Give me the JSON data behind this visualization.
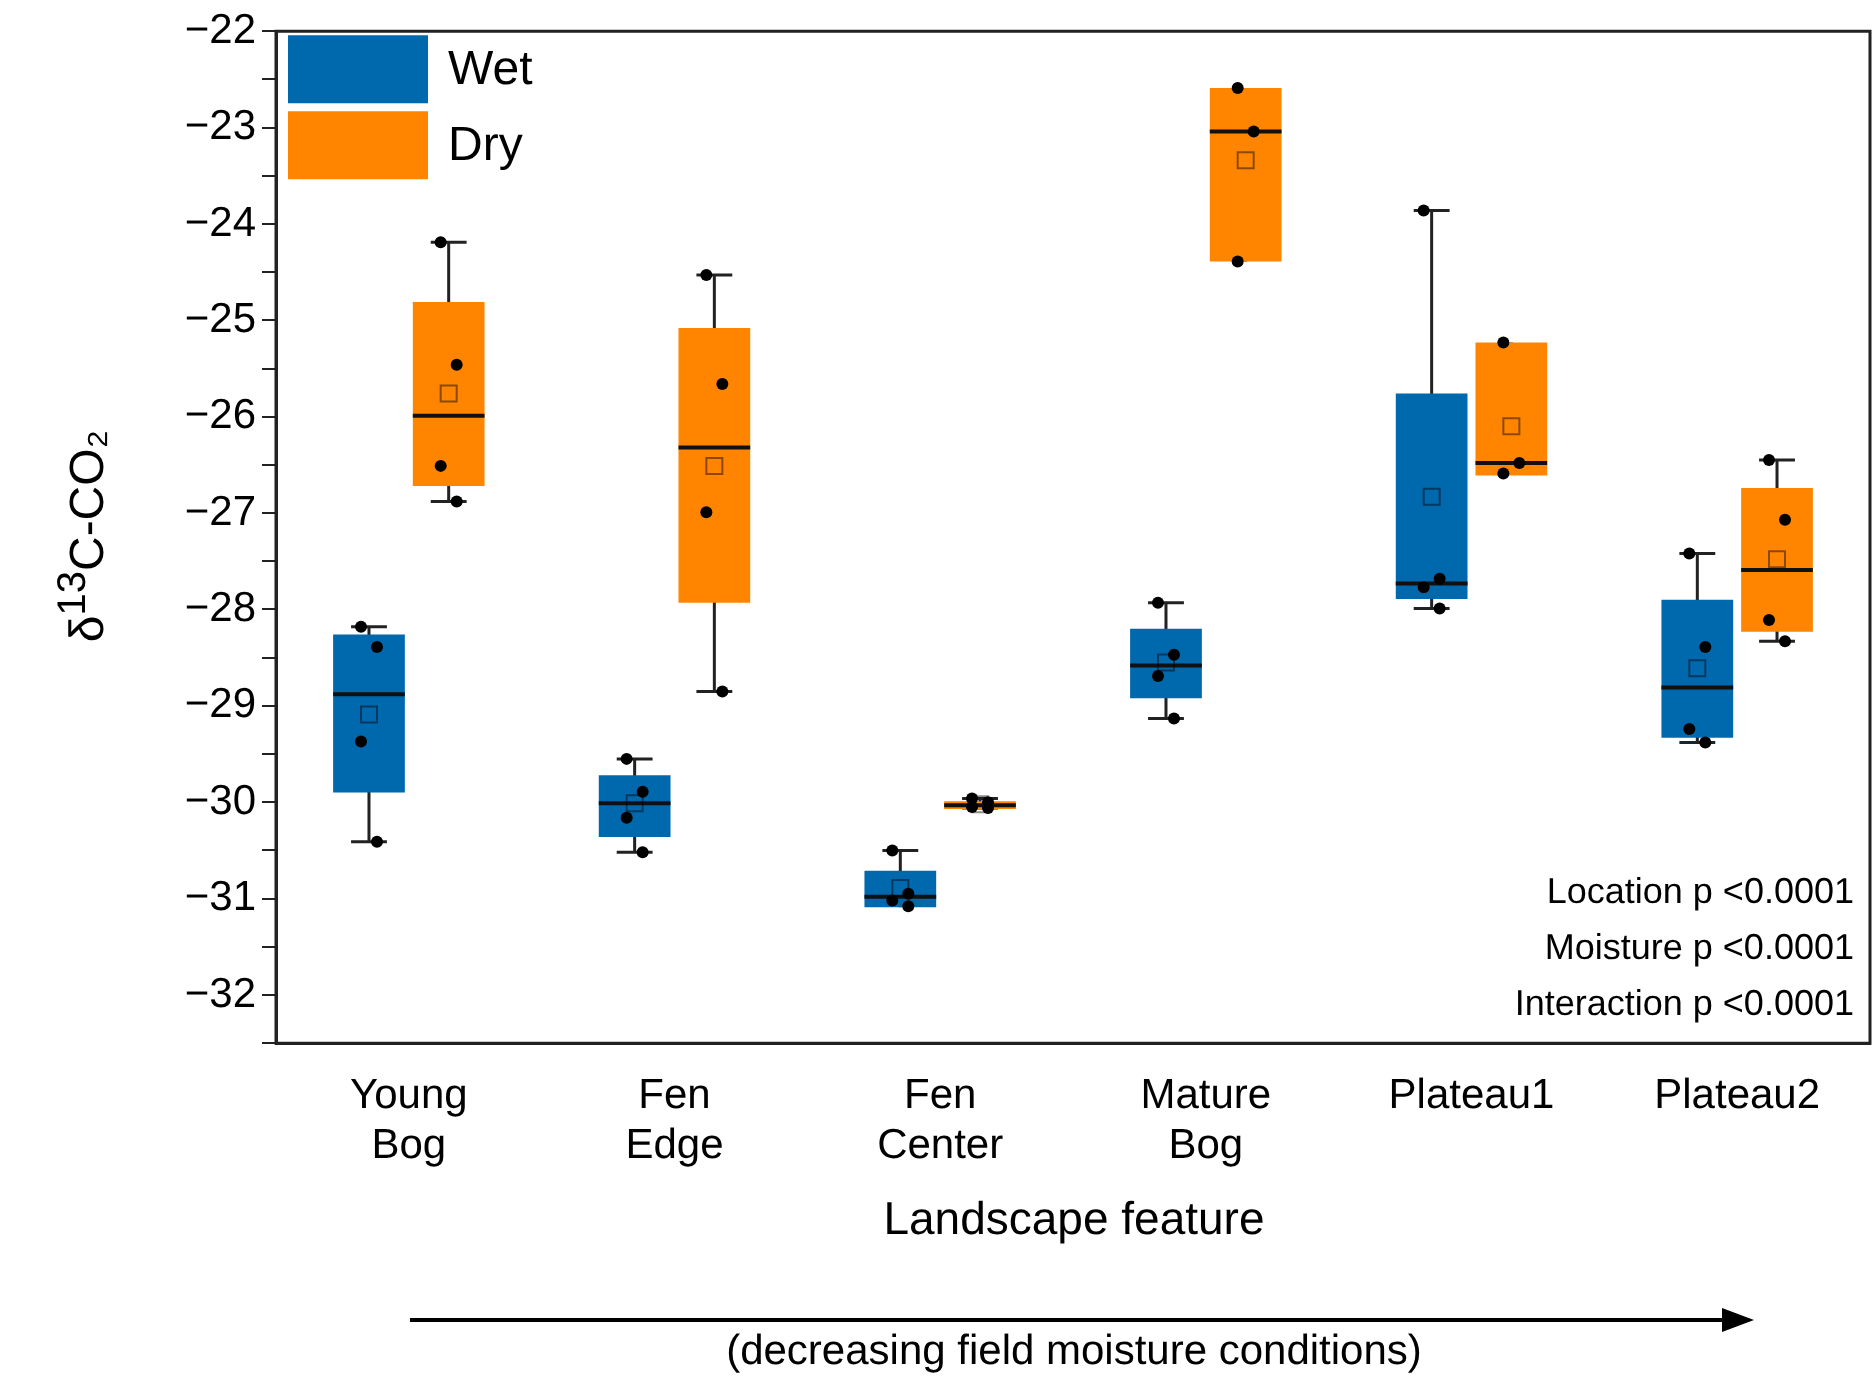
{
  "chart_data": {
    "type": "box",
    "ylabel": "δ$^{13}$C-CO₂",
    "xlabel": "Landscape feature",
    "categories": [
      "Young Bog",
      "Fen Edge",
      "Fen Center",
      "Mature Bog",
      "Plateau1",
      "Plateau2"
    ],
    "ylim": [
      -32.5,
      -22
    ],
    "yticks": [
      {
        "value": -32.5,
        "label": null
      },
      -32,
      {
        "value": -31.5,
        "label": null
      },
      -31,
      {
        "value": -30.5,
        "label": null
      },
      -30,
      {
        "value": -29.5,
        "label": null
      },
      -29,
      {
        "value": -28.5,
        "label": null
      },
      -28,
      {
        "value": -27.5,
        "label": null
      },
      -27,
      {
        "value": -26.5,
        "label": null
      },
      -26,
      {
        "value": -25.5,
        "label": null
      },
      -25,
      {
        "value": -24.5,
        "label": null
      },
      -24,
      {
        "value": -23.5,
        "label": null
      },
      -23,
      {
        "value": -22.5,
        "label": null
      },
      -22
    ],
    "legend": "top left",
    "series": [
      {
        "name": "Wet",
        "color": "#0068ad",
        "boxes": [
          {
            "low": -30.41,
            "q1": -29.9,
            "median": -28.88,
            "q3": -28.26,
            "high": -28.18,
            "mean": -29.09,
            "outliers": [
              -28.18,
              -28.39,
              -29.37,
              -30.41
            ]
          },
          {
            "low": -30.52,
            "q1": -30.36,
            "median": -30.01,
            "q3": -29.72,
            "high": -29.55,
            "mean": -30.01,
            "outliers": [
              -29.55,
              -29.89,
              -30.16,
              -30.52
            ]
          },
          {
            "low": -31.09,
            "q1": -31.09,
            "median": -30.98,
            "q3": -30.71,
            "high": -30.5,
            "mean": -30.89,
            "outliers": [
              -30.5,
              -30.95,
              -31.02,
              -31.08
            ]
          },
          {
            "low": -29.13,
            "q1": -28.92,
            "median": -28.58,
            "q3": -28.2,
            "high": -27.93,
            "mean": -28.55,
            "outliers": [
              -27.93,
              -28.47,
              -28.69,
              -29.13
            ]
          },
          {
            "low": -27.99,
            "q1": -27.89,
            "median": -27.73,
            "q3": -25.76,
            "high": -23.86,
            "mean": -26.83,
            "outliers": [
              -23.86,
              -27.68,
              -27.77,
              -27.99
            ]
          },
          {
            "low": -29.38,
            "q1": -29.33,
            "median": -28.81,
            "q3": -27.9,
            "high": -27.42,
            "mean": -28.61,
            "outliers": [
              -27.42,
              -28.39,
              -29.24,
              -29.38
            ]
          }
        ]
      },
      {
        "name": "Dry",
        "color": "#ff8400",
        "boxes": [
          {
            "low": -26.88,
            "q1": -26.72,
            "median": -25.99,
            "q3": -24.81,
            "high": -24.19,
            "mean": -25.76,
            "outliers": [
              -24.19,
              -25.46,
              -26.51,
              -26.88
            ]
          },
          {
            "low": -28.85,
            "q1": -27.93,
            "median": -26.32,
            "q3": -25.08,
            "high": -24.53,
            "mean": -26.51,
            "outliers": [
              -24.53,
              -25.66,
              -26.99,
              -28.85
            ]
          },
          {
            "low": -30.06,
            "q1": -30.07,
            "median": -30.03,
            "q3": -29.99,
            "high": -29.96,
            "mean": -30.02,
            "outliers": [
              -29.96,
              -30.0,
              -30.05,
              -30.06
            ]
          },
          {
            "low": -24.39,
            "q1": -24.39,
            "median": -23.04,
            "q3": -22.59,
            "high": -22.59,
            "mean": -23.34,
            "outliers": [
              -22.59,
              -23.04,
              -24.39
            ]
          },
          {
            "low": -26.59,
            "q1": -26.61,
            "median": -26.48,
            "q3": -25.23,
            "high": -25.23,
            "mean": -26.1,
            "outliers": [
              -25.23,
              -26.48,
              -26.59
            ]
          },
          {
            "low": -28.33,
            "q1": -28.23,
            "median": -27.59,
            "q3": -26.74,
            "high": -26.45,
            "mean": -27.48,
            "outliers": [
              -26.45,
              -27.07,
              -28.11,
              -28.33
            ]
          }
        ]
      }
    ],
    "annotations": [
      "Location p <0.0001",
      "Moisture p <0.0001",
      "Interaction p <0.0001",
      "(decreasing field moisture conditions)"
    ]
  }
}
